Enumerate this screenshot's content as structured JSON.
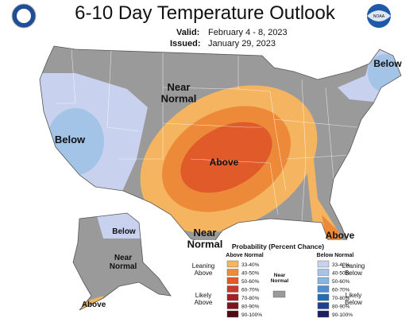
{
  "header": {
    "title": "6-10 Day Temperature Outlook",
    "valid_label": "Valid:",
    "valid": "February 4 - 8, 2023",
    "issued_label": "Issued:",
    "issued": "January 29, 2023"
  },
  "logos": {
    "right": "NOAA"
  },
  "map_labels": [
    {
      "lines": [
        "Near",
        "Normal"
      ]
    },
    {
      "lines": [
        "Below"
      ]
    },
    {
      "lines": [
        "Above"
      ]
    },
    {
      "lines": [
        "Below"
      ]
    },
    {
      "lines": [
        "Near",
        "Normal"
      ]
    },
    {
      "lines": [
        "Above"
      ]
    },
    {
      "lines": [
        "Below"
      ]
    },
    {
      "lines": [
        "Near",
        "Normal"
      ]
    },
    {
      "lines": [
        "Above"
      ]
    }
  ],
  "legend": {
    "title": "Probability (Percent Chance)",
    "above": {
      "heading": "Above Normal",
      "ranges": [
        "33-40%",
        "40-50%",
        "50-60%",
        "60-70%",
        "70-80%",
        "80-90%",
        "90-100%"
      ],
      "leaning": [
        "Leaning",
        "Above"
      ],
      "likely": [
        "Likely",
        "Above"
      ]
    },
    "below": {
      "heading": "Below Normal",
      "ranges": [
        "33-40%",
        "40-50%",
        "50-60%",
        "60-70%",
        "70-80%",
        "80-90%",
        "90-100%"
      ],
      "leaning": [
        "Leaning",
        "Below"
      ],
      "likely": [
        "Likely",
        "Below"
      ]
    },
    "near": {
      "lines": [
        "Near",
        "Normal"
      ]
    }
  }
}
